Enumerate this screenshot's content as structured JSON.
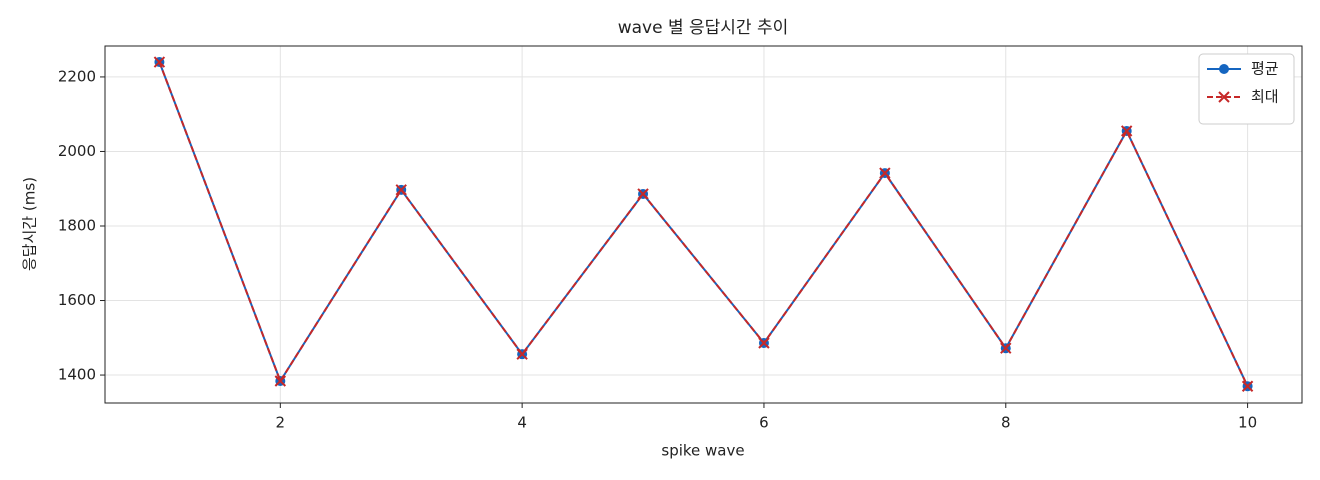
{
  "chart_data": {
    "type": "line",
    "title": "wave 별 응답시간 추이",
    "xlabel": "spike wave",
    "ylabel": "응답시간 (ms)",
    "x": [
      1,
      2,
      3,
      4,
      5,
      6,
      7,
      8,
      9,
      10
    ],
    "series": [
      {
        "name": "평균",
        "color": "#1565c0",
        "marker": "o",
        "dash": false,
        "values": [
          2240,
          1384,
          1897,
          1456,
          1886,
          1486,
          1942,
          1472,
          2055,
          1370
        ]
      },
      {
        "name": "최대",
        "color": "#c62828",
        "marker": "x",
        "dash": true,
        "values": [
          2240,
          1384,
          1897,
          1456,
          1886,
          1486,
          1942,
          1472,
          2055,
          1370
        ]
      }
    ],
    "xlim": [
      0.55,
      10.45
    ],
    "xticks": [
      2,
      4,
      6,
      8,
      10
    ],
    "ylim": [
      1325,
      2283
    ],
    "yticks": [
      1400,
      1600,
      1800,
      2000,
      2200
    ],
    "grid": true,
    "legend": "upper right"
  }
}
